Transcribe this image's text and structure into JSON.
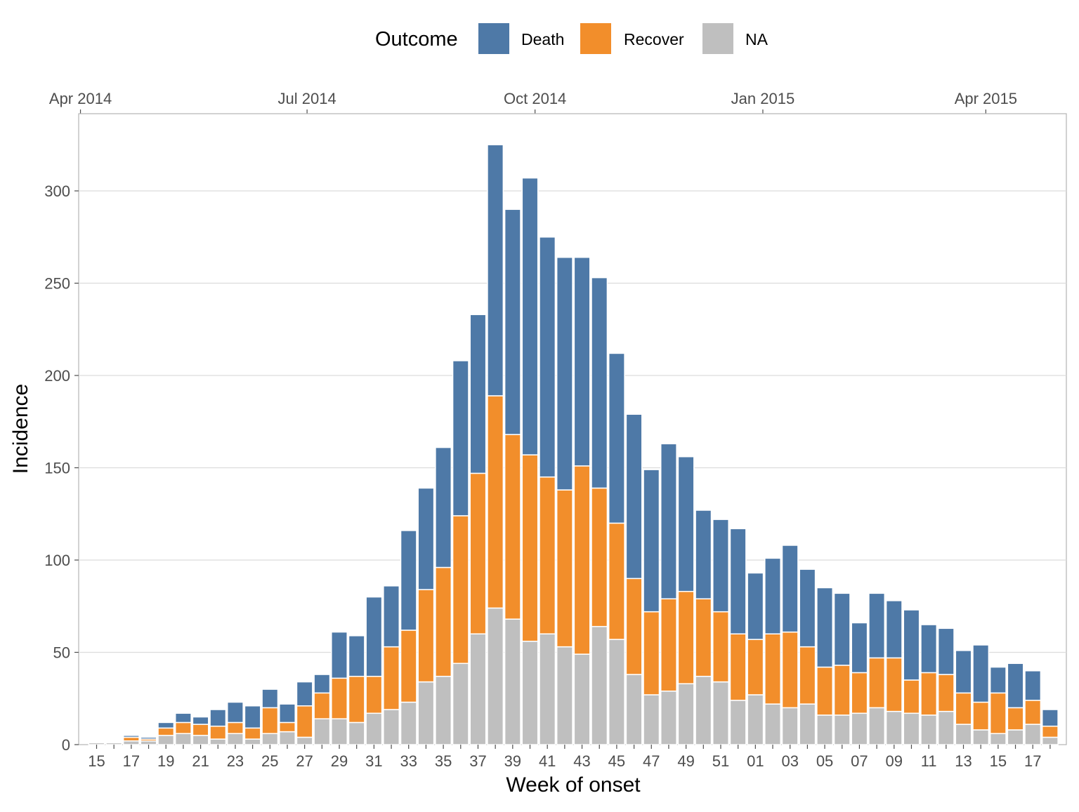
{
  "chart_data": {
    "type": "bar",
    "stacked": true,
    "title": "",
    "xlabel": "Week of onset",
    "ylabel": "Incidence",
    "ylim": [
      0,
      340
    ],
    "yticks": [
      0,
      50,
      100,
      150,
      200,
      250,
      300
    ],
    "grid": true,
    "legend": {
      "title": "Outcome",
      "position": "top",
      "entries": [
        {
          "name": "Death",
          "color": "#4e79a7"
        },
        {
          "name": "Recover",
          "color": "#f28e2b"
        },
        {
          "name": "NA",
          "color": "#bfbfbf"
        }
      ]
    },
    "top_axis": {
      "labels": [
        "Apr 2014",
        "Jul 2014",
        "Oct 2014",
        "Jan 2015",
        "Apr 2015"
      ],
      "week_index": [
        -0.93,
        12.14,
        25.29,
        38.43,
        51.29
      ]
    },
    "categories": [
      "15",
      "16",
      "17",
      "18",
      "19",
      "20",
      "21",
      "22",
      "23",
      "24",
      "25",
      "26",
      "27",
      "28",
      "29",
      "30",
      "31",
      "32",
      "33",
      "34",
      "35",
      "36",
      "37",
      "38",
      "39",
      "40",
      "41",
      "42",
      "43",
      "44",
      "45",
      "46",
      "47",
      "48",
      "49",
      "50",
      "51",
      "52",
      "01",
      "02",
      "03",
      "04",
      "05",
      "06",
      "07",
      "08",
      "09",
      "10",
      "11",
      "12",
      "13",
      "14",
      "15",
      "16",
      "17",
      "18"
    ],
    "x_tick_labels": [
      "15",
      "",
      "17",
      "",
      "19",
      "",
      "21",
      "",
      "23",
      "",
      "25",
      "",
      "27",
      "",
      "29",
      "",
      "31",
      "",
      "33",
      "",
      "35",
      "",
      "37",
      "",
      "39",
      "",
      "41",
      "",
      "43",
      "",
      "45",
      "",
      "47",
      "",
      "49",
      "",
      "51",
      "",
      "01",
      "",
      "03",
      "",
      "05",
      "",
      "07",
      "",
      "09",
      "",
      "11",
      "",
      "13",
      "",
      "15",
      "",
      "17",
      ""
    ],
    "series": [
      {
        "name": "NA",
        "color": "#bfbfbf",
        "values": [
          1,
          1,
          2,
          2,
          5,
          6,
          5,
          3,
          6,
          3,
          6,
          7,
          4,
          14,
          14,
          12,
          17,
          19,
          23,
          34,
          37,
          44,
          60,
          74,
          68,
          56,
          60,
          53,
          49,
          64,
          57,
          38,
          27,
          29,
          33,
          37,
          34,
          24,
          27,
          22,
          20,
          22,
          16,
          16,
          17,
          20,
          18,
          17,
          16,
          18,
          11,
          8,
          6,
          8,
          11,
          4
        ]
      },
      {
        "name": "Recover",
        "color": "#f28e2b",
        "values": [
          0,
          0,
          2,
          1,
          4,
          6,
          6,
          7,
          6,
          6,
          14,
          5,
          17,
          14,
          22,
          25,
          20,
          34,
          39,
          50,
          59,
          80,
          87,
          115,
          100,
          101,
          85,
          85,
          102,
          75,
          63,
          52,
          45,
          50,
          50,
          42,
          38,
          36,
          30,
          38,
          41,
          31,
          26,
          27,
          22,
          27,
          29,
          18,
          23,
          20,
          17,
          15,
          22,
          12,
          13,
          6
        ]
      },
      {
        "name": "Death",
        "color": "#4e79a7",
        "values": [
          0,
          0,
          1,
          1,
          3,
          5,
          4,
          9,
          11,
          12,
          10,
          10,
          13,
          10,
          25,
          22,
          43,
          33,
          54,
          55,
          65,
          84,
          86,
          136,
          122,
          150,
          130,
          126,
          113,
          114,
          92,
          89,
          77,
          84,
          73,
          48,
          50,
          57,
          36,
          41,
          47,
          42,
          43,
          39,
          27,
          35,
          31,
          38,
          26,
          25,
          23,
          31,
          14,
          24,
          16,
          9
        ]
      }
    ]
  }
}
